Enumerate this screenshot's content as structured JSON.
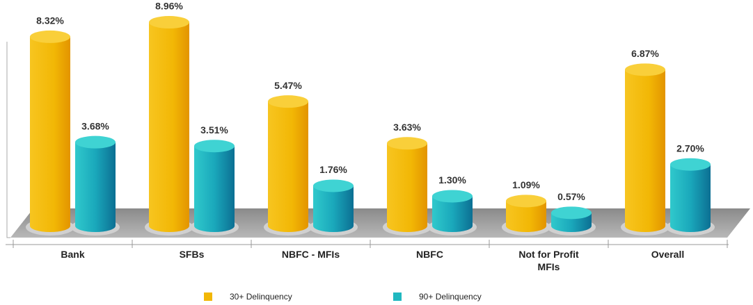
{
  "chart_data": {
    "type": "bar",
    "categories": [
      "Bank",
      "SFBs",
      "NBFC - MFIs",
      "NBFC",
      "Not for Profit MFIs",
      "Overall"
    ],
    "series": [
      {
        "name": "30+ Delinquency",
        "color": "#f2b705",
        "values": [
          8.32,
          8.96,
          5.47,
          3.63,
          1.09,
          6.87
        ],
        "value_labels": [
          "8.32%",
          "8.96%",
          "5.47%",
          "3.63%",
          "1.09%",
          "6.87%"
        ]
      },
      {
        "name": "90+ Delinquency",
        "color": "#20b8c0",
        "values": [
          3.68,
          3.51,
          1.76,
          1.3,
          0.57,
          2.7
        ],
        "value_labels": [
          "3.68%",
          "3.51%",
          "1.76%",
          "1.30%",
          "0.57%",
          "2.70%"
        ]
      }
    ]
  }
}
